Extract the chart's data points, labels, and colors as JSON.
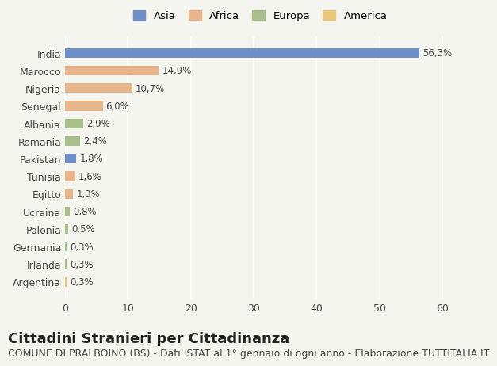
{
  "categories": [
    "India",
    "Marocco",
    "Nigeria",
    "Senegal",
    "Albania",
    "Romania",
    "Pakistan",
    "Tunisia",
    "Egitto",
    "Ucraina",
    "Polonia",
    "Germania",
    "Irlanda",
    "Argentina"
  ],
  "values": [
    56.3,
    14.9,
    10.7,
    6.0,
    2.9,
    2.4,
    1.8,
    1.6,
    1.3,
    0.8,
    0.5,
    0.3,
    0.3,
    0.3
  ],
  "labels": [
    "56,3%",
    "14,9%",
    "10,7%",
    "6,0%",
    "2,9%",
    "2,4%",
    "1,8%",
    "1,6%",
    "1,3%",
    "0,8%",
    "0,5%",
    "0,3%",
    "0,3%",
    "0,3%"
  ],
  "colors": [
    "#6e8fc9",
    "#e8b48a",
    "#e8b48a",
    "#e8b48a",
    "#a8bf8a",
    "#a8bf8a",
    "#6e8fc9",
    "#e8b48a",
    "#e8b48a",
    "#a8bf8a",
    "#a8bf8a",
    "#a8bf8a",
    "#a8bf8a",
    "#e8c97a"
  ],
  "continents": [
    "Asia",
    "Africa",
    "Africa",
    "Africa",
    "Europa",
    "Europa",
    "Asia",
    "Africa",
    "Africa",
    "Europa",
    "Europa",
    "Europa",
    "Europa",
    "America"
  ],
  "legend_labels": [
    "Asia",
    "Africa",
    "Europa",
    "America"
  ],
  "legend_colors": [
    "#6e8fc9",
    "#e8b48a",
    "#a8bf8a",
    "#e8c97a"
  ],
  "title": "Cittadini Stranieri per Cittadinanza",
  "subtitle": "COMUNE DI PRALBOINO (BS) - Dati ISTAT al 1° gennaio di ogni anno - Elaborazione TUTTITALIA.IT",
  "xlim": [
    0,
    62
  ],
  "xticks": [
    0,
    10,
    20,
    30,
    40,
    50,
    60
  ],
  "background_color": "#f5f5f0",
  "bar_background": "#ffffff",
  "title_fontsize": 13,
  "subtitle_fontsize": 9,
  "label_fontsize": 9
}
